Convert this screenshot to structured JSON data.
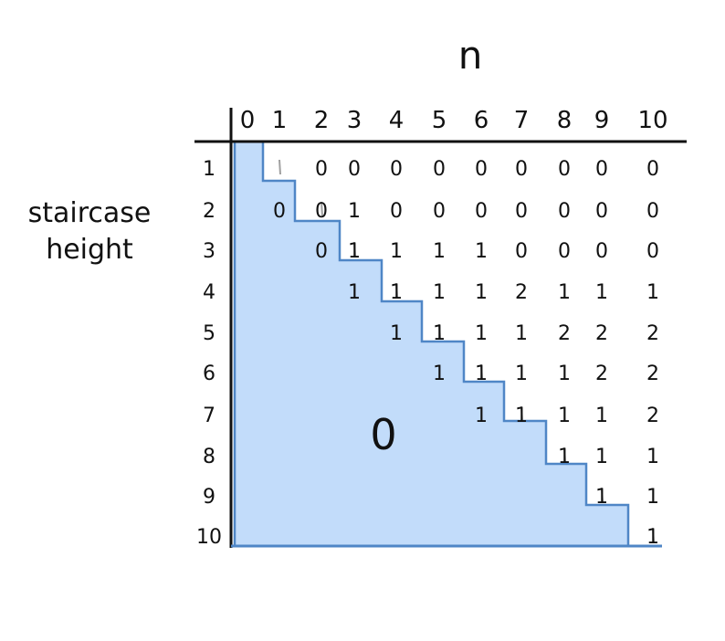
{
  "title_n": "n",
  "row_axis_label": [
    "staircase",
    "height"
  ],
  "column_headers": [
    "0",
    "1",
    "2",
    "3",
    "4",
    "5",
    "6",
    "7",
    "8",
    "9",
    "10"
  ],
  "row_headers": [
    "1",
    "2",
    "3",
    "4",
    "5",
    "6",
    "7",
    "8",
    "9",
    "10"
  ],
  "region_label": "0",
  "fill_color": "#c2dcfa",
  "edge_color": "#4f86c6",
  "rows": [
    [
      "0",
      "0",
      "0",
      "0",
      "0",
      "0",
      "0",
      "0",
      "0"
    ],
    [
      "0",
      "0",
      "1",
      "0",
      "0",
      "0",
      "0",
      "0",
      "0",
      "0"
    ],
    [
      "0",
      "1",
      "1",
      "1",
      "1",
      "0",
      "0",
      "0",
      "0"
    ],
    [
      "1",
      "1",
      "1",
      "1",
      "2",
      "1",
      "1",
      "1"
    ],
    [
      "1",
      "1",
      "1",
      "1",
      "2",
      "2",
      "2"
    ],
    [
      "1",
      "1",
      "1",
      "1",
      "2",
      "2"
    ],
    [
      "1",
      "1",
      "1",
      "1",
      "2"
    ],
    [
      "1",
      "1",
      "1"
    ],
    [
      "1",
      "1"
    ],
    [
      "1"
    ]
  ],
  "grid": {
    "columns": 11,
    "rows": 10
  }
}
